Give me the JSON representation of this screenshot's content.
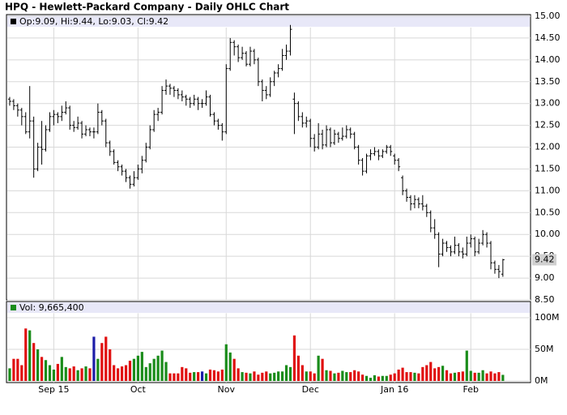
{
  "chart_data": [
    {
      "type": "ohlc",
      "title": "HPQ - Hewlett-Packard Company - Daily OHLC Chart",
      "legend": "Op:9.09, Hi:9.44, Lo:9.03, Cl:9.42",
      "color": "#000000",
      "grid": true,
      "xlim": [
        -0.8,
        129.9
      ],
      "ylim": [
        8.5,
        15.0
      ],
      "yticks": [
        {
          "value": 8.5,
          "label": "8.50"
        },
        {
          "value": 9,
          "label": "9.00"
        },
        {
          "value": 9.5,
          "label": "9.50"
        },
        {
          "value": 10,
          "label": "10.00"
        },
        {
          "value": 10.5,
          "label": "10.50"
        },
        {
          "value": 11,
          "label": "11.00"
        },
        {
          "value": 11.5,
          "label": "11.50"
        },
        {
          "value": 12,
          "label": "12.00"
        },
        {
          "value": 12.5,
          "label": "12.50"
        },
        {
          "value": 13,
          "label": "13.00"
        },
        {
          "value": 13.5,
          "label": "13.50"
        },
        {
          "value": 14,
          "label": "14.00"
        },
        {
          "value": 14.5,
          "label": "14.50"
        },
        {
          "value": 15,
          "label": "15.00"
        }
      ],
      "last_label": {
        "value": 9.42,
        "label": "9.42"
      },
      "ohlc": [
        [
          13.1,
          13.15,
          12.95,
          13.05
        ],
        [
          13.05,
          13.1,
          12.85,
          12.95
        ],
        [
          12.95,
          13.0,
          12.7,
          12.85
        ],
        [
          12.85,
          12.9,
          12.5,
          12.7
        ],
        [
          12.7,
          12.8,
          12.3,
          12.35
        ],
        [
          12.35,
          13.4,
          12.2,
          12.6
        ],
        [
          12.6,
          12.7,
          11.3,
          11.5
        ],
        [
          11.5,
          12.1,
          11.45,
          12.0
        ],
        [
          12.0,
          12.6,
          11.6,
          11.95
        ],
        [
          11.95,
          12.5,
          11.9,
          12.4
        ],
        [
          12.4,
          12.8,
          12.35,
          12.7
        ],
        [
          12.7,
          12.85,
          12.5,
          12.75
        ],
        [
          12.75,
          12.8,
          12.55,
          12.7
        ],
        [
          12.7,
          12.95,
          12.6,
          12.8
        ],
        [
          12.8,
          13.05,
          12.75,
          12.9
        ],
        [
          12.9,
          12.95,
          12.4,
          12.5
        ],
        [
          12.5,
          12.6,
          12.35,
          12.45
        ],
        [
          12.45,
          12.7,
          12.4,
          12.55
        ],
        [
          12.55,
          12.6,
          12.2,
          12.3
        ],
        [
          12.3,
          12.5,
          12.25,
          12.4
        ],
        [
          12.4,
          12.45,
          12.25,
          12.35
        ],
        [
          12.35,
          12.45,
          12.2,
          12.35
        ],
        [
          12.35,
          13.0,
          12.3,
          12.8
        ],
        [
          12.8,
          12.85,
          12.5,
          12.6
        ],
        [
          12.6,
          12.65,
          12.0,
          12.1
        ],
        [
          12.1,
          12.15,
          11.8,
          11.9
        ],
        [
          11.9,
          11.95,
          11.6,
          11.65
        ],
        [
          11.65,
          11.7,
          11.45,
          11.55
        ],
        [
          11.55,
          11.6,
          11.35,
          11.45
        ],
        [
          11.45,
          11.5,
          11.2,
          11.3
        ],
        [
          11.3,
          11.35,
          11.05,
          11.15
        ],
        [
          11.15,
          11.45,
          11.1,
          11.3
        ],
        [
          11.3,
          11.6,
          11.25,
          11.5
        ],
        [
          11.5,
          11.8,
          11.4,
          11.7
        ],
        [
          11.7,
          12.1,
          11.65,
          12.0
        ],
        [
          12.0,
          12.5,
          11.95,
          12.4
        ],
        [
          12.4,
          12.85,
          12.35,
          12.75
        ],
        [
          12.75,
          12.9,
          12.6,
          12.8
        ],
        [
          12.8,
          13.4,
          12.75,
          13.3
        ],
        [
          13.3,
          13.55,
          13.2,
          13.4
        ],
        [
          13.4,
          13.45,
          13.2,
          13.35
        ],
        [
          13.35,
          13.4,
          13.15,
          13.3
        ],
        [
          13.3,
          13.35,
          13.1,
          13.2
        ],
        [
          13.2,
          13.3,
          13.05,
          13.15
        ],
        [
          13.15,
          13.2,
          12.95,
          13.1
        ],
        [
          13.1,
          13.15,
          12.9,
          13.0
        ],
        [
          13.0,
          13.2,
          12.95,
          13.1
        ],
        [
          13.1,
          13.15,
          12.85,
          13.0
        ],
        [
          13.0,
          13.1,
          12.9,
          13.0
        ],
        [
          13.0,
          13.3,
          12.95,
          13.15
        ],
        [
          13.15,
          13.2,
          12.7,
          12.75
        ],
        [
          12.75,
          12.8,
          12.5,
          12.6
        ],
        [
          12.6,
          12.65,
          12.4,
          12.5
        ],
        [
          12.5,
          12.55,
          12.15,
          12.35
        ],
        [
          12.35,
          13.9,
          12.3,
          13.8
        ],
        [
          13.8,
          14.5,
          13.75,
          14.4
        ],
        [
          14.4,
          14.45,
          14.1,
          14.3
        ],
        [
          14.3,
          14.35,
          13.95,
          14.05
        ],
        [
          14.05,
          14.3,
          14.0,
          14.15
        ],
        [
          14.15,
          14.2,
          13.85,
          13.9
        ],
        [
          13.9,
          14.3,
          13.85,
          14.2
        ],
        [
          14.2,
          14.25,
          13.9,
          14.0
        ],
        [
          14.0,
          14.05,
          13.4,
          13.5
        ],
        [
          13.5,
          13.55,
          13.05,
          13.3
        ],
        [
          13.3,
          13.4,
          13.1,
          13.2
        ],
        [
          13.2,
          13.6,
          13.15,
          13.5
        ],
        [
          13.5,
          13.75,
          13.4,
          13.7
        ],
        [
          13.7,
          13.9,
          13.6,
          13.8
        ],
        [
          13.8,
          14.25,
          13.75,
          14.1
        ],
        [
          14.1,
          14.35,
          14.0,
          14.2
        ],
        [
          14.2,
          14.8,
          14.1,
          14.7
        ],
        [
          13.1,
          13.25,
          12.3,
          13.0
        ],
        [
          13.0,
          13.05,
          12.6,
          12.7
        ],
        [
          12.7,
          12.8,
          12.45,
          12.55
        ],
        [
          12.55,
          12.7,
          12.45,
          12.6
        ],
        [
          12.6,
          12.65,
          12.0,
          12.2
        ],
        [
          12.2,
          12.3,
          11.9,
          12.0
        ],
        [
          12.0,
          12.55,
          11.95,
          12.3
        ],
        [
          12.3,
          12.4,
          11.95,
          12.05
        ],
        [
          12.05,
          12.5,
          12.0,
          12.4
        ],
        [
          12.4,
          12.45,
          12.0,
          12.1
        ],
        [
          12.1,
          12.4,
          12.05,
          12.3
        ],
        [
          12.3,
          12.35,
          12.1,
          12.2
        ],
        [
          12.2,
          12.45,
          12.15,
          12.25
        ],
        [
          12.25,
          12.5,
          12.2,
          12.4
        ],
        [
          12.4,
          12.45,
          12.2,
          12.3
        ],
        [
          12.3,
          12.35,
          11.95,
          12.0
        ],
        [
          12.0,
          12.05,
          11.6,
          11.7
        ],
        [
          11.7,
          11.75,
          11.35,
          11.45
        ],
        [
          11.45,
          11.85,
          11.4,
          11.8
        ],
        [
          11.8,
          11.95,
          11.7,
          11.85
        ],
        [
          11.85,
          12.0,
          11.8,
          11.9
        ],
        [
          11.9,
          11.95,
          11.7,
          11.8
        ],
        [
          11.8,
          11.95,
          11.75,
          11.9
        ],
        [
          11.9,
          12.05,
          11.85,
          12.0
        ],
        [
          12.0,
          12.05,
          11.8,
          11.9
        ],
        [
          11.8,
          11.85,
          11.6,
          11.7
        ],
        [
          11.7,
          11.75,
          11.45,
          11.55
        ],
        [
          11.3,
          11.35,
          10.9,
          11.0
        ],
        [
          11.0,
          11.05,
          10.75,
          10.85
        ],
        [
          10.85,
          10.9,
          10.55,
          10.7
        ],
        [
          10.7,
          10.9,
          10.6,
          10.8
        ],
        [
          10.8,
          10.85,
          10.6,
          10.7
        ],
        [
          10.7,
          10.9,
          10.55,
          10.65
        ],
        [
          10.65,
          10.7,
          10.4,
          10.5
        ],
        [
          10.5,
          10.55,
          10.05,
          10.15
        ],
        [
          10.15,
          10.35,
          9.9,
          10.0
        ],
        [
          10.0,
          10.05,
          9.25,
          9.55
        ],
        [
          9.55,
          9.9,
          9.5,
          9.8
        ],
        [
          9.8,
          9.85,
          9.6,
          9.7
        ],
        [
          9.7,
          9.75,
          9.5,
          9.6
        ],
        [
          9.6,
          9.95,
          9.55,
          9.75
        ],
        [
          9.75,
          9.8,
          9.5,
          9.6
        ],
        [
          9.6,
          9.7,
          9.45,
          9.55
        ],
        [
          9.55,
          9.95,
          9.5,
          9.8
        ],
        [
          9.8,
          10.0,
          9.7,
          9.9
        ],
        [
          9.9,
          9.95,
          9.5,
          9.6
        ],
        [
          9.6,
          9.9,
          9.55,
          9.8
        ],
        [
          9.8,
          10.1,
          9.75,
          10.0
        ],
        [
          10.0,
          10.05,
          9.7,
          9.8
        ],
        [
          9.8,
          9.85,
          9.2,
          9.35
        ],
        [
          9.35,
          9.4,
          9.1,
          9.2
        ],
        [
          9.2,
          9.3,
          9.0,
          9.15
        ],
        [
          9.09,
          9.44,
          9.03,
          9.42
        ]
      ]
    },
    {
      "type": "bar",
      "legend": "Vol: 9,665,400",
      "up_color": "#1a8c1a",
      "down_color": "#e01010",
      "flat_color": "#1c1ca8",
      "grid": true,
      "xlim": [
        -0.8,
        129.9
      ],
      "ylim": [
        0,
        120
      ],
      "yticks": [
        {
          "value": 0,
          "label": "0M"
        },
        {
          "value": 50,
          "label": "50M"
        },
        {
          "value": 100,
          "label": "100M"
        }
      ],
      "xticks": [
        {
          "value": 11,
          "label": "Sep 15"
        },
        {
          "value": 32,
          "label": "Oct"
        },
        {
          "value": 54,
          "label": "Nov"
        },
        {
          "value": 75,
          "label": "Dec"
        },
        {
          "value": 96,
          "label": "Jan 16"
        },
        {
          "value": 115,
          "label": "Feb"
        }
      ],
      "values": [
        20,
        35,
        35,
        25,
        83,
        80,
        60,
        50,
        38,
        33,
        25,
        18,
        27,
        38,
        22,
        20,
        23,
        17,
        20,
        23,
        20,
        70,
        35,
        60,
        70,
        50,
        25,
        20,
        23,
        25,
        32,
        35,
        40,
        46,
        22,
        28,
        35,
        40,
        48,
        30,
        12,
        12,
        12,
        22,
        20,
        13,
        14,
        14,
        15,
        12,
        18,
        17,
        15,
        18,
        58,
        45,
        35,
        20,
        14,
        13,
        12,
        15,
        10,
        13,
        15,
        12,
        13,
        15,
        15,
        25,
        22,
        72,
        40,
        25,
        15,
        15,
        12,
        40,
        35,
        17,
        16,
        12,
        13,
        16,
        14,
        14,
        17,
        15,
        10,
        8,
        5,
        9,
        7,
        8,
        8,
        10,
        12,
        18,
        21,
        14,
        14,
        13,
        12,
        22,
        25,
        30,
        20,
        22,
        24,
        17,
        12,
        13,
        14,
        15,
        48,
        16,
        13,
        13,
        17,
        12,
        15,
        12,
        14,
        9.67
      ]
    }
  ]
}
